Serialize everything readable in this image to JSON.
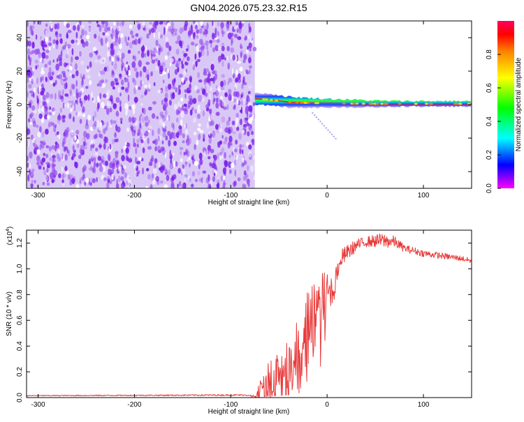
{
  "title": "GN04.2026.075.23.32.R15",
  "colors": {
    "signal": "#ff2020",
    "snr_line": "#e83a3a",
    "noise": "#7a1fe8",
    "colorbar": [
      "#ff00ff",
      "#ff0000",
      "#ff8000",
      "#ffff00",
      "#00ff00",
      "#00ffff",
      "#0000ff",
      "#ff00ff"
    ]
  },
  "chart_data": [
    {
      "type": "heatmap",
      "title": "GN04.2026.075.23.32.R15",
      "xlabel": "Height of straight line (km)",
      "ylabel": "Frequency (Hz)",
      "xlim": [
        -312,
        150
      ],
      "ylim": [
        -50,
        50
      ],
      "xticks": [
        {
          "v": -300,
          "label": "-300"
        },
        {
          "v": -200,
          "label": "-200"
        },
        {
          "v": -100,
          "label": "-100"
        },
        {
          "v": 0,
          "label": "0"
        },
        {
          "v": 100,
          "label": "100"
        }
      ],
      "yticks": [
        {
          "v": -40,
          "label": "-40"
        },
        {
          "v": -20,
          "label": "-20"
        },
        {
          "v": 0,
          "label": "0"
        },
        {
          "v": 20,
          "label": "20"
        },
        {
          "v": 40,
          "label": "40"
        }
      ],
      "noise_region_x": [
        -312,
        -75
      ],
      "signal_line": {
        "x_start": -75,
        "points": [
          [
            -75,
            3.5
          ],
          [
            -60,
            3
          ],
          [
            -40,
            1.5
          ],
          [
            -20,
            1
          ],
          [
            0,
            0.8
          ],
          [
            50,
            0.5
          ],
          [
            100,
            0.5
          ],
          [
            150,
            0.5
          ]
        ]
      },
      "spur_line": {
        "x": [
          -15,
          10
        ],
        "y": [
          -5,
          -21
        ]
      },
      "colorbar": {
        "label": "Normalized spectral amplitude",
        "range": [
          0.0,
          1.0
        ],
        "ticks": [
          {
            "v": 0.0,
            "label": "0.0"
          },
          {
            "v": 0.2,
            "label": "0.2"
          },
          {
            "v": 0.4,
            "label": "0.4"
          },
          {
            "v": 0.6,
            "label": "0.6"
          },
          {
            "v": 0.8,
            "label": "0.8"
          }
        ]
      }
    },
    {
      "type": "line",
      "xlabel": "Height of straight line (km)",
      "ylabel": "SNR (10 * v/v)",
      "y_multiplier": "(x10",
      "y_multiplier_exp": "4",
      "y_multiplier_close": ")",
      "xlim": [
        -312,
        150
      ],
      "ylim": [
        0,
        1.3
      ],
      "xticks": [
        {
          "v": -300,
          "label": "-300"
        },
        {
          "v": -200,
          "label": "-200"
        },
        {
          "v": -100,
          "label": "-100"
        },
        {
          "v": 0,
          "label": "0"
        },
        {
          "v": 100,
          "label": "100"
        }
      ],
      "yticks": [
        {
          "v": 0.0,
          "label": "0.0"
        },
        {
          "v": 0.2,
          "label": "0.2"
        },
        {
          "v": 0.4,
          "label": "0.4"
        },
        {
          "v": 0.6,
          "label": "0.6"
        },
        {
          "v": 0.8,
          "label": "0.8"
        },
        {
          "v": 1.0,
          "label": "1.0"
        },
        {
          "v": 1.2,
          "label": "1.2"
        }
      ],
      "series": [
        {
          "name": "SNR",
          "envelope": [
            [
              -312,
              0.015
            ],
            [
              -80,
              0.02
            ],
            [
              -75,
              0.03
            ],
            [
              -70,
              0.12
            ],
            [
              -60,
              0.22
            ],
            [
              -50,
              0.3
            ],
            [
              -40,
              0.42
            ],
            [
              -30,
              0.58
            ],
            [
              -20,
              0.72
            ],
            [
              -10,
              0.86
            ],
            [
              0,
              0.95
            ],
            [
              10,
              1.03
            ],
            [
              20,
              1.12
            ],
            [
              30,
              1.18
            ],
            [
              40,
              1.21
            ],
            [
              55,
              1.22
            ],
            [
              70,
              1.21
            ],
            [
              80,
              1.16
            ],
            [
              100,
              1.12
            ],
            [
              120,
              1.1
            ],
            [
              140,
              1.08
            ],
            [
              150,
              1.06
            ]
          ],
          "amplitude": [
            [
              -312,
              0.004
            ],
            [
              -80,
              0.006
            ],
            [
              -75,
              0.03
            ],
            [
              -60,
              0.2
            ],
            [
              -40,
              0.35
            ],
            [
              -20,
              0.45
            ],
            [
              0,
              0.35
            ],
            [
              10,
              0.1
            ],
            [
              20,
              0.06
            ],
            [
              40,
              0.04
            ],
            [
              60,
              0.06
            ],
            [
              80,
              0.03
            ],
            [
              150,
              0.02
            ]
          ]
        }
      ]
    }
  ]
}
